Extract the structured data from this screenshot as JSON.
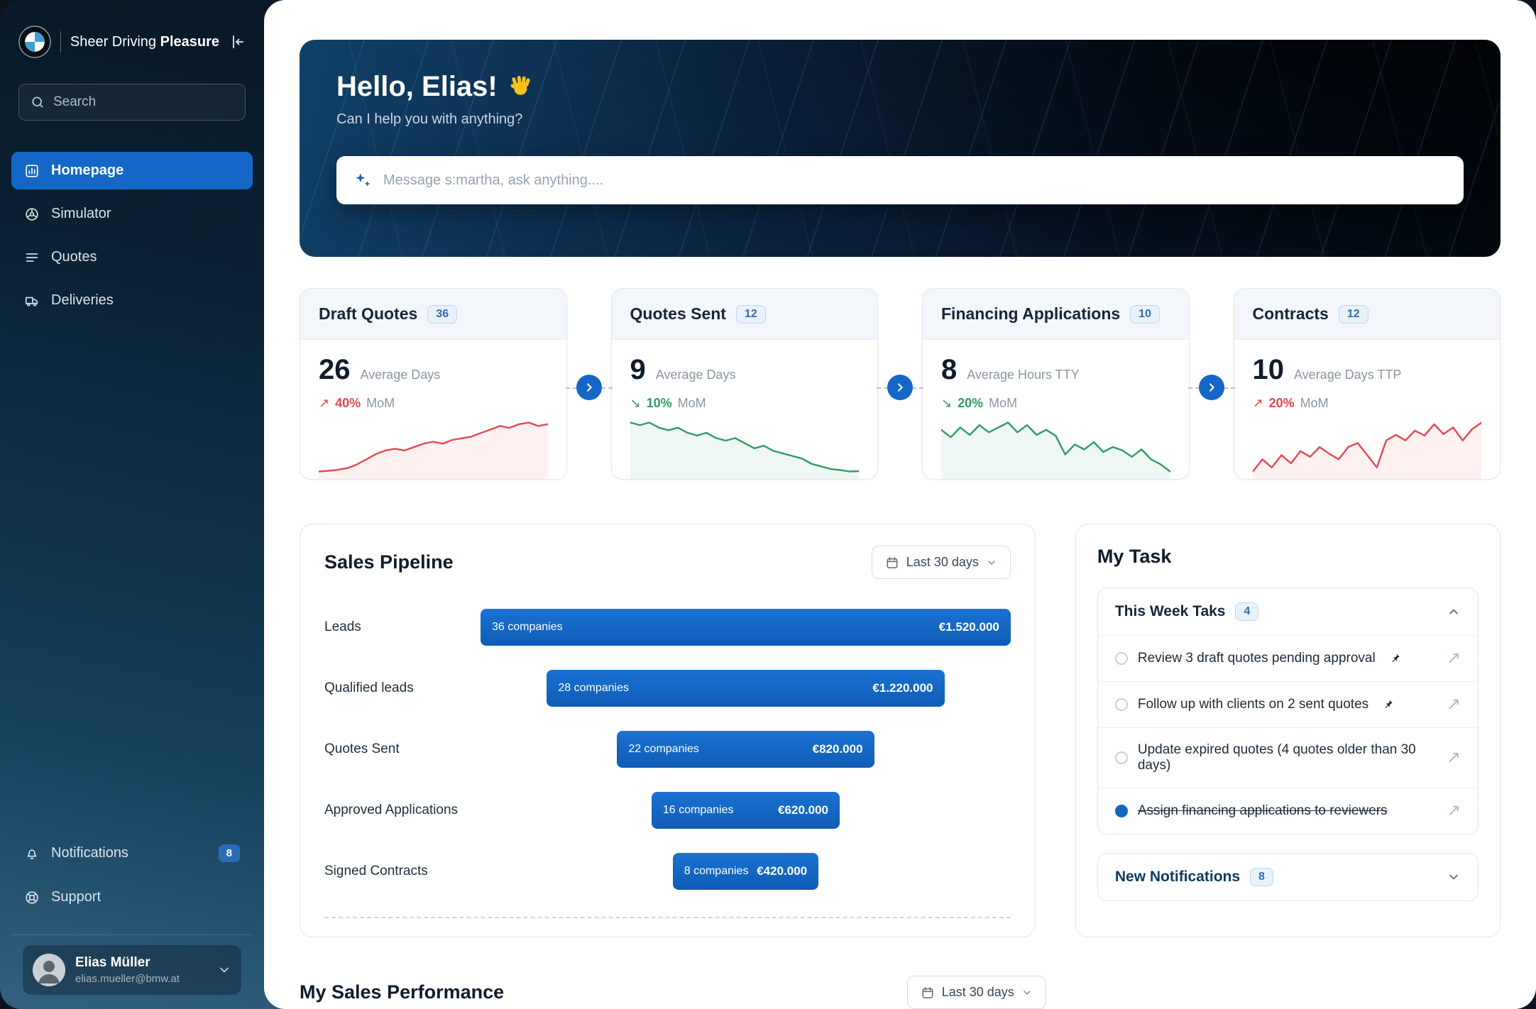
{
  "brand": {
    "name_regular": "Sheer Driving",
    "name_bold": "Pleasure"
  },
  "sidebar": {
    "search_placeholder": "Search",
    "nav": [
      {
        "label": "Homepage"
      },
      {
        "label": "Simulator"
      },
      {
        "label": "Quotes"
      },
      {
        "label": "Deliveries"
      }
    ],
    "notifications_label": "Notifications",
    "notifications_badge": "8",
    "support_label": "Support",
    "user": {
      "name": "Elias Müller",
      "email": "elias.mueller@bmw.at"
    }
  },
  "hero": {
    "greeting": "Hello, Elias!",
    "subtitle": "Can I help you with anything?",
    "input_placeholder": "Message s:martha, ask anything...."
  },
  "kpis": [
    {
      "title": "Draft Quotes",
      "badge": "36",
      "value": "26",
      "unit": "Average Days",
      "trend_glyph": "↗",
      "delta": "40%",
      "mom": "MoM",
      "color": "#e5484d",
      "spark": [
        10,
        10.2,
        10.5,
        11,
        12,
        13.5,
        15,
        16,
        16.5,
        16,
        17,
        18,
        18.5,
        18,
        19,
        19.5,
        20,
        21,
        22,
        23,
        22.5,
        23.5,
        24,
        23,
        23.5
      ]
    },
    {
      "title": "Quotes Sent",
      "badge": "12",
      "value": "9",
      "unit": "Average Days",
      "trend_glyph": "↘",
      "delta": "10%",
      "mom": "MoM",
      "color": "#2a9d63",
      "spark": [
        20,
        19.5,
        20,
        19,
        18.5,
        19,
        18,
        17.5,
        18,
        17,
        16.5,
        17,
        16,
        15,
        15.5,
        14.5,
        14,
        13.5,
        13,
        12,
        11.5,
        11,
        10.8,
        10.5,
        10.6
      ]
    },
    {
      "title": "Financing Applications",
      "badge": "10",
      "value": "8",
      "unit": "Average Hours TTY",
      "trend_glyph": "↘",
      "delta": "20%",
      "mom": "MoM",
      "color": "#2a9d63",
      "spark": [
        15,
        13.5,
        15.5,
        14,
        16,
        14.5,
        15.5,
        16.5,
        14.5,
        16,
        14,
        15,
        13.8,
        10,
        12,
        11,
        12.5,
        10.5,
        11.5,
        10.8,
        9.5,
        11,
        9,
        8,
        6.5
      ]
    },
    {
      "title": "Contracts",
      "badge": "12",
      "value": "10",
      "unit": "Average Days TTP",
      "trend_glyph": "↗",
      "delta": "20%",
      "mom": "MoM",
      "color": "#e5484d",
      "spark": [
        8,
        9.5,
        8.5,
        10,
        9,
        10.5,
        9.8,
        11,
        10.2,
        9.5,
        11,
        11.5,
        10,
        8.5,
        11.8,
        12.5,
        11.8,
        13,
        12.4,
        13.8,
        12.6,
        13.4,
        11.8,
        13.2,
        14
      ]
    }
  ],
  "pipeline": {
    "title": "Sales Pipeline",
    "filter": "Last 30 days",
    "rows": [
      {
        "label": "Leads",
        "companies": "36 companies",
        "value": "€1.520.000",
        "width": "100%"
      },
      {
        "label": "Qualified leads",
        "companies": "28 companies",
        "value": "€1.220.000",
        "width": "75%"
      },
      {
        "label": "Quotes Sent",
        "companies": "22 companies",
        "value": "€820.000",
        "width": "48.5%"
      },
      {
        "label": "Approved Applications",
        "companies": "16 companies",
        "value": "€620.000",
        "width": "35.5%"
      },
      {
        "label": "Signed Contracts",
        "companies": "8 companies",
        "value": "€420.000",
        "width": "27.5%"
      }
    ]
  },
  "tasks": {
    "title": "My Task",
    "group_label": "This Week Taks",
    "group_count": "4",
    "items": [
      {
        "text": "Review 3 draft quotes pending approval"
      },
      {
        "text": "Follow up with clients on 2 sent quotes"
      },
      {
        "text": "Update expired quotes (4 quotes older than 30 days)"
      },
      {
        "text": "Assign financing applications to reviewers"
      }
    ],
    "notifications_label": "New Notifications",
    "notifications_count": "8",
    "arrow_glyph": "↗"
  },
  "performance": {
    "title": "My Sales Performance",
    "filter": "Last 30 days"
  }
}
